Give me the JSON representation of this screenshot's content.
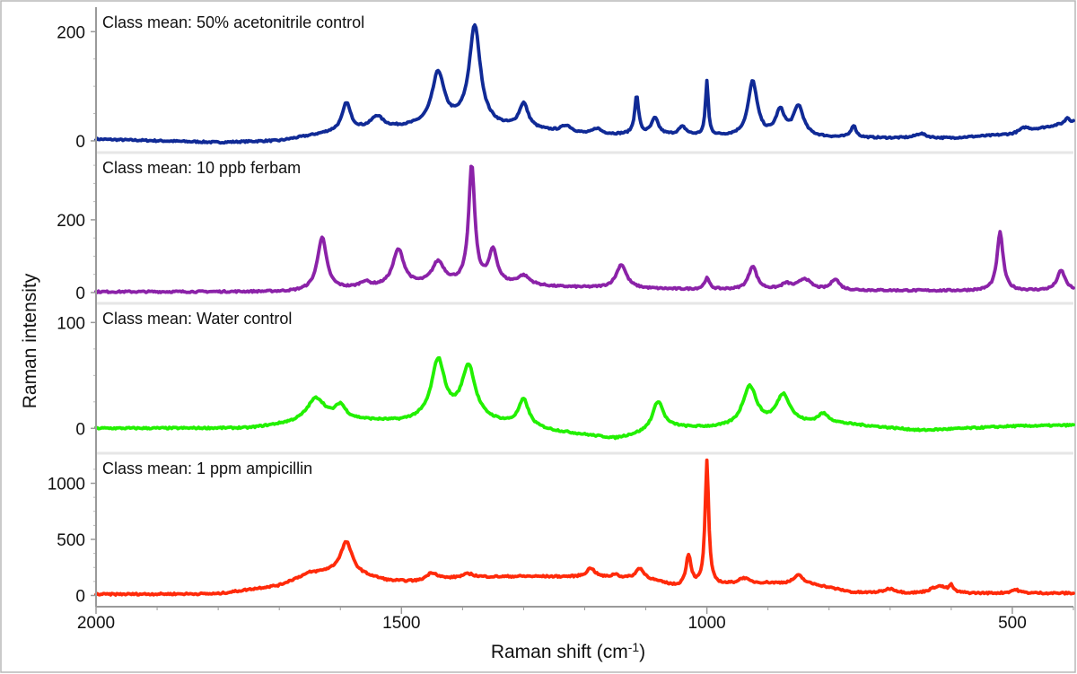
{
  "chart_data": {
    "type": "line",
    "xlabel": "Raman shift (cm",
    "xlabel_sup": "-1",
    "xlabel_tail": ")",
    "ylabel": "Raman intensity",
    "xlim": [
      2000,
      400
    ],
    "x_ticks": [
      2000,
      1500,
      1000,
      500
    ],
    "grid": false,
    "colors": {
      "frame": "#b8b8b8",
      "axis": "#9a9a9a"
    },
    "panels": [
      {
        "label": "Class mean: 50% acetonitrile control",
        "color": "#102a96",
        "ylim": [
          -5,
          235
        ],
        "y_ticks": [
          0,
          200
        ],
        "baseline": [
          [
            2000,
            3
          ],
          [
            1800,
            -3
          ],
          [
            1700,
            0
          ],
          [
            1600,
            18
          ],
          [
            1400,
            30
          ],
          [
            1200,
            12
          ],
          [
            1000,
            8
          ],
          [
            850,
            6
          ],
          [
            700,
            5
          ],
          [
            600,
            5
          ],
          [
            500,
            12
          ],
          [
            400,
            35
          ]
        ],
        "peaks": [
          [
            1590,
            50,
            8
          ],
          [
            1540,
            22,
            12
          ],
          [
            1440,
            95,
            12
          ],
          [
            1380,
            180,
            11
          ],
          [
            1300,
            45,
            9
          ],
          [
            1230,
            12,
            10
          ],
          [
            1180,
            10,
            8
          ],
          [
            1115,
            70,
            4
          ],
          [
            1085,
            30,
            7
          ],
          [
            1040,
            15,
            8
          ],
          [
            1000,
            100,
            2.8
          ],
          [
            925,
            100,
            9
          ],
          [
            880,
            45,
            9
          ],
          [
            850,
            55,
            10
          ],
          [
            760,
            22,
            5
          ],
          [
            650,
            8,
            10
          ],
          [
            480,
            8,
            10
          ],
          [
            410,
            10,
            4
          ]
        ]
      },
      {
        "label": "Class mean: 10 ppb ferbam",
        "color": "#8b22a8",
        "ylim": [
          -5,
          370
        ],
        "y_ticks": [
          0,
          200
        ],
        "baseline": [
          [
            2000,
            2
          ],
          [
            1800,
            2
          ],
          [
            1680,
            2
          ],
          [
            1550,
            12
          ],
          [
            1450,
            20
          ],
          [
            1380,
            25
          ],
          [
            1250,
            15
          ],
          [
            1100,
            10
          ],
          [
            1000,
            8
          ],
          [
            800,
            6
          ],
          [
            600,
            5
          ],
          [
            400,
            5
          ]
        ],
        "peaks": [
          [
            1630,
            145,
            9
          ],
          [
            1560,
            15,
            10
          ],
          [
            1505,
            100,
            11
          ],
          [
            1440,
            60,
            12
          ],
          [
            1385,
            320,
            6
          ],
          [
            1350,
            90,
            8
          ],
          [
            1300,
            25,
            12
          ],
          [
            1140,
            65,
            10
          ],
          [
            1000,
            30,
            5
          ],
          [
            925,
            65,
            8
          ],
          [
            870,
            15,
            10
          ],
          [
            840,
            30,
            12
          ],
          [
            790,
            30,
            8
          ],
          [
            520,
            160,
            6
          ],
          [
            420,
            55,
            8
          ]
        ]
      },
      {
        "label": "Class mean: Water control",
        "color": "#22f000",
        "ylim": [
          -15,
          113
        ],
        "y_ticks": [
          0,
          100
        ],
        "baseline": [
          [
            2000,
            0
          ],
          [
            1750,
            0
          ],
          [
            1700,
            3
          ],
          [
            1600,
            8
          ],
          [
            1500,
            6
          ],
          [
            1400,
            10
          ],
          [
            1250,
            -3
          ],
          [
            1150,
            -10
          ],
          [
            1050,
            0
          ],
          [
            950,
            0
          ],
          [
            800,
            5
          ],
          [
            650,
            -2
          ],
          [
            500,
            2
          ],
          [
            400,
            3
          ]
        ],
        "peaks": [
          [
            1640,
            22,
            18
          ],
          [
            1600,
            12,
            10
          ],
          [
            1440,
            55,
            13
          ],
          [
            1390,
            48,
            13
          ],
          [
            1300,
            25,
            10
          ],
          [
            1080,
            28,
            11
          ],
          [
            930,
            38,
            14
          ],
          [
            875,
            28,
            14
          ],
          [
            810,
            8,
            10
          ]
        ]
      },
      {
        "label": "Class mean: 1 ppm ampicillin",
        "color": "#ff2a0a",
        "ylim": [
          -20,
          1220
        ],
        "y_ticks": [
          0,
          500,
          1000
        ],
        "baseline": [
          [
            2000,
            10
          ],
          [
            1800,
            15
          ],
          [
            1700,
            90
          ],
          [
            1650,
            200
          ],
          [
            1600,
            220
          ],
          [
            1520,
            130
          ],
          [
            1470,
            120
          ],
          [
            1400,
            160
          ],
          [
            1300,
            170
          ],
          [
            1200,
            165
          ],
          [
            1100,
            150
          ],
          [
            1050,
            80
          ],
          [
            950,
            100
          ],
          [
            900,
            110
          ],
          [
            820,
            90
          ],
          [
            760,
            25
          ],
          [
            650,
            10
          ],
          [
            500,
            20
          ],
          [
            400,
            20
          ]
        ],
        "peaks": [
          [
            1590,
            270,
            11
          ],
          [
            1450,
            70,
            12
          ],
          [
            1390,
            30,
            10
          ],
          [
            1190,
            80,
            8
          ],
          [
            1150,
            30,
            6
          ],
          [
            1110,
            90,
            7
          ],
          [
            1030,
            270,
            5
          ],
          [
            1000,
            1100,
            3.5
          ],
          [
            940,
            50,
            10
          ],
          [
            850,
            80,
            10
          ],
          [
            700,
            40,
            12
          ],
          [
            620,
            70,
            18
          ],
          [
            600,
            60,
            3
          ],
          [
            495,
            30,
            8
          ]
        ]
      }
    ]
  }
}
